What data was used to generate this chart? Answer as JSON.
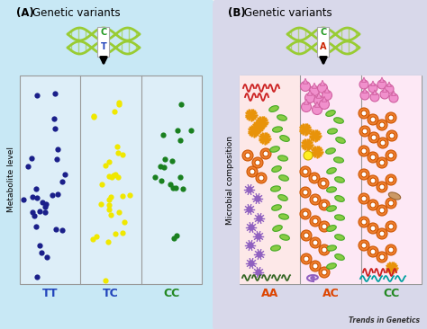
{
  "panel_A_bg": "#c8e8f5",
  "panel_B_bg": "#d8d8ea",
  "fig_bg": "#f0f0f0",
  "title_A": "Genetic variants",
  "title_B": "Genetic variants",
  "label_A": "(A)",
  "label_B": "(B)",
  "ylabel_A": "Metabolite level",
  "ylabel_B": "Microbial composition",
  "xticks_A": [
    "TT",
    "TC",
    "CC"
  ],
  "xticks_B": [
    "AA",
    "AC",
    "CC"
  ],
  "xtick_colors_A": [
    "#2244bb",
    "#2244bb",
    "#228822"
  ],
  "xtick_colors_B": [
    "#dd4400",
    "#dd4400",
    "#228822"
  ],
  "dot_color_TT": "#1a1f8a",
  "dot_color_TC": "#f0e800",
  "dot_color_CC": "#1a8020",
  "dna_color": "#99cc33",
  "arrow_color": "#111111",
  "trends_text": "Trends in Genetics"
}
